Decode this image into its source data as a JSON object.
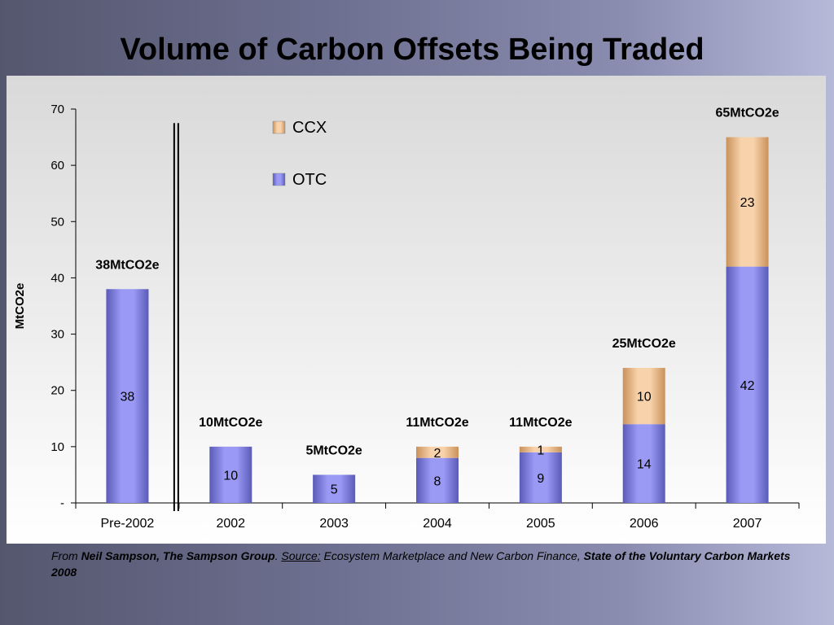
{
  "slide": {
    "title": "Volume of Carbon Offsets Being Traded"
  },
  "footer": {
    "prefix": "From ",
    "author": "Neil Sampson, The Sampson Group",
    "dot": ".  ",
    "source_label": "Source:",
    "source_text": "  Ecosystem Marketplace and New Carbon Finance, ",
    "report": "State of the Voluntary Carbon Markets 2008"
  },
  "chart_data": {
    "type": "bar",
    "stacked": true,
    "categories": [
      "Pre-2002",
      "2002",
      "2003",
      "2004",
      "2005",
      "2006",
      "2007"
    ],
    "series": [
      {
        "name": "OTC",
        "values": [
          38,
          10,
          5,
          8,
          9,
          14,
          42
        ],
        "labels": [
          "38",
          "10",
          "5",
          "8",
          "9",
          "14",
          "42"
        ],
        "color": "#8f8ff0"
      },
      {
        "name": "CCX",
        "values": [
          0,
          0,
          0,
          2,
          1,
          10,
          23
        ],
        "labels": [
          "",
          "",
          "",
          "2",
          "1",
          "10",
          "23"
        ],
        "color": "#f3c99c"
      }
    ],
    "total_labels": [
      "38MtCO2e",
      "10MtCO2e",
      "5MtCO2e",
      "11MtCO2e",
      "11MtCO2e",
      "25MtCO2e",
      "65MtCO2e"
    ],
    "ylabel": "MtCO2e",
    "ylim": [
      0,
      70
    ],
    "yticks": [
      0,
      10,
      20,
      30,
      40,
      50,
      60,
      70
    ],
    "ytick_labels": [
      "-",
      "10",
      "20",
      "30",
      "40",
      "50",
      "60",
      "70"
    ],
    "legend": {
      "position": "top-left",
      "entries": [
        "CCX",
        "OTC"
      ]
    },
    "axis_break_after": "Pre-2002",
    "grid": false
  }
}
